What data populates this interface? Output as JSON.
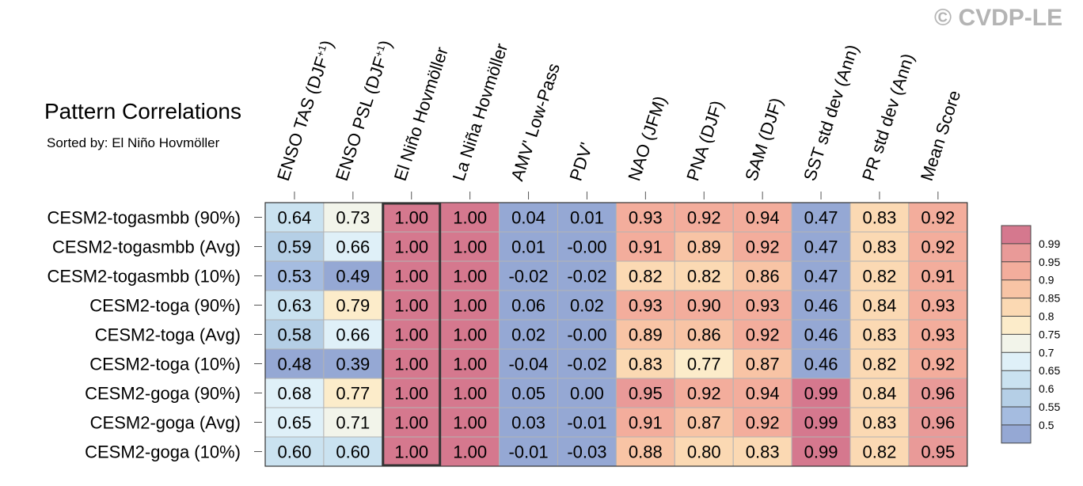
{
  "chart_data": {
    "type": "heatmap",
    "title": "Pattern Correlations",
    "subtitle": "Sorted by: El Niño Hovmöller",
    "watermark": "© CVDP-LE",
    "columns": [
      "ENSO TAS (DJF+1)",
      "ENSO PSL (DJF+1)",
      "El Niño Hovmöller",
      "La Niña Hovmöller",
      "AMV' Low-Pass",
      "PDV'",
      "NAO (JFM)",
      "PNA (DJF)",
      "SAM (DJF)",
      "SST std dev (Ann)",
      "PR std dev (Ann)",
      "Mean Score"
    ],
    "rows": [
      "CESM2-togasmbb (90%)",
      "CESM2-togasmbb (Avg)",
      "CESM2-togasmbb (10%)",
      "CESM2-toga (90%)",
      "CESM2-toga (Avg)",
      "CESM2-toga (10%)",
      "CESM2-goga (90%)",
      "CESM2-goga (Avg)",
      "CESM2-goga (10%)"
    ],
    "values": [
      [
        0.64,
        0.73,
        1.0,
        1.0,
        0.04,
        0.01,
        0.93,
        0.92,
        0.94,
        0.47,
        0.83,
        0.92
      ],
      [
        0.59,
        0.66,
        1.0,
        1.0,
        0.01,
        -0.0,
        0.91,
        0.89,
        0.92,
        0.47,
        0.83,
        0.92
      ],
      [
        0.53,
        0.49,
        1.0,
        1.0,
        -0.02,
        -0.02,
        0.82,
        0.82,
        0.86,
        0.47,
        0.82,
        0.91
      ],
      [
        0.63,
        0.79,
        1.0,
        1.0,
        0.06,
        0.02,
        0.93,
        0.9,
        0.93,
        0.46,
        0.84,
        0.93
      ],
      [
        0.58,
        0.66,
        1.0,
        1.0,
        0.02,
        -0.0,
        0.89,
        0.86,
        0.92,
        0.46,
        0.83,
        0.93
      ],
      [
        0.48,
        0.39,
        1.0,
        1.0,
        -0.04,
        -0.02,
        0.83,
        0.77,
        0.87,
        0.46,
        0.82,
        0.92
      ],
      [
        0.68,
        0.77,
        1.0,
        1.0,
        0.05,
        0.0,
        0.95,
        0.92,
        0.94,
        0.99,
        0.84,
        0.96
      ],
      [
        0.65,
        0.71,
        1.0,
        1.0,
        0.03,
        -0.01,
        0.91,
        0.87,
        0.92,
        0.99,
        0.83,
        0.96
      ],
      [
        0.6,
        0.6,
        1.0,
        1.0,
        -0.01,
        -0.03,
        0.88,
        0.8,
        0.83,
        0.99,
        0.82,
        0.95
      ]
    ],
    "labels": [
      [
        "0.64",
        "0.73",
        "1.00",
        "1.00",
        "0.04",
        "0.01",
        "0.93",
        "0.92",
        "0.94",
        "0.47",
        "0.83",
        "0.92"
      ],
      [
        "0.59",
        "0.66",
        "1.00",
        "1.00",
        "0.01",
        "-0.00",
        "0.91",
        "0.89",
        "0.92",
        "0.47",
        "0.83",
        "0.92"
      ],
      [
        "0.53",
        "0.49",
        "1.00",
        "1.00",
        "-0.02",
        "-0.02",
        "0.82",
        "0.82",
        "0.86",
        "0.47",
        "0.82",
        "0.91"
      ],
      [
        "0.63",
        "0.79",
        "1.00",
        "1.00",
        "0.06",
        "0.02",
        "0.93",
        "0.90",
        "0.93",
        "0.46",
        "0.84",
        "0.93"
      ],
      [
        "0.58",
        "0.66",
        "1.00",
        "1.00",
        "0.02",
        "-0.00",
        "0.89",
        "0.86",
        "0.92",
        "0.46",
        "0.83",
        "0.93"
      ],
      [
        "0.48",
        "0.39",
        "1.00",
        "1.00",
        "-0.04",
        "-0.02",
        "0.83",
        "0.77",
        "0.87",
        "0.46",
        "0.82",
        "0.92"
      ],
      [
        "0.68",
        "0.77",
        "1.00",
        "1.00",
        "0.05",
        "0.00",
        "0.95",
        "0.92",
        "0.94",
        "0.99",
        "0.84",
        "0.96"
      ],
      [
        "0.65",
        "0.71",
        "1.00",
        "1.00",
        "0.03",
        "-0.01",
        "0.91",
        "0.87",
        "0.92",
        "0.99",
        "0.83",
        "0.96"
      ],
      [
        "0.60",
        "0.60",
        "1.00",
        "1.00",
        "-0.01",
        "-0.03",
        "0.88",
        "0.80",
        "0.83",
        "0.99",
        "0.82",
        "0.95"
      ]
    ],
    "highlighted_column": "El Niño Hovmöller",
    "colorbar": {
      "levels": [
        "0.99",
        "0.95",
        "0.9",
        "0.85",
        "0.8",
        "0.75",
        "0.7",
        "0.65",
        "0.6",
        "0.55",
        "0.5"
      ],
      "colors_top_to_bottom": [
        "#d5788e",
        "#e99a98",
        "#f3ad9c",
        "#f8c4a5",
        "#fbd9b3",
        "#fcecca",
        "#f2f4ea",
        "#dff0f8",
        "#cae2f0",
        "#b5cfe6",
        "#a5bce0",
        "#95a8d4"
      ]
    }
  }
}
